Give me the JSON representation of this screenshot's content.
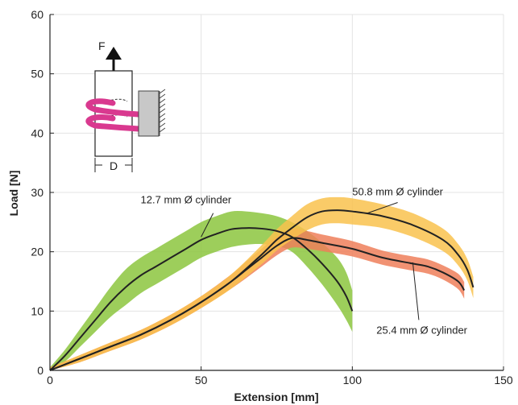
{
  "chart_data": {
    "type": "line",
    "title": "",
    "xlabel": "Extension [mm]",
    "ylabel": "Load [N]",
    "xlim": [
      0,
      150
    ],
    "ylim": [
      0,
      60
    ],
    "xticks": [
      0,
      50,
      100,
      150
    ],
    "yticks": [
      0,
      10,
      20,
      30,
      40,
      50,
      60
    ],
    "grid": true,
    "series": [
      {
        "name": "12.7 mm Ø cylinder",
        "color": "#222222",
        "band_color": "#8cc63e",
        "x": [
          0,
          5,
          10,
          15,
          20,
          25,
          30,
          35,
          40,
          45,
          50,
          55,
          60,
          65,
          70,
          75,
          80,
          85,
          90,
          95,
          98,
          100
        ],
        "y": [
          0,
          2.5,
          5.5,
          8.5,
          11.5,
          14,
          16,
          17.5,
          19,
          20.5,
          22,
          23,
          23.8,
          24,
          23.9,
          23.5,
          22.5,
          20.5,
          18,
          15,
          12.5,
          10
        ],
        "band": [
          0.5,
          1,
          1.5,
          2,
          2.5,
          3,
          3,
          3,
          3,
          3,
          3,
          3,
          3,
          2.8,
          2.6,
          2.5,
          2.5,
          3,
          3.5,
          4,
          4,
          3.5
        ]
      },
      {
        "name": "25.4 mm Ø cylinder",
        "color": "#222222",
        "band_color": "#ef7f5a",
        "x": [
          0,
          10,
          20,
          30,
          40,
          50,
          60,
          65,
          70,
          75,
          80,
          85,
          90,
          100,
          110,
          120,
          125,
          130,
          135,
          137
        ],
        "y": [
          0,
          2,
          4,
          6,
          8.5,
          11.5,
          15,
          17,
          19,
          21,
          22.3,
          22,
          21.5,
          20.5,
          19,
          18,
          17.5,
          16.5,
          15,
          13.5
        ],
        "band": [
          0.5,
          0.6,
          0.7,
          0.8,
          0.9,
          1,
          1.2,
          1.4,
          1.5,
          1.6,
          1.6,
          1.5,
          1.4,
          1.3,
          1.2,
          1.2,
          1.2,
          1.2,
          1.3,
          1.4
        ]
      },
      {
        "name": "50.8 mm Ø cylinder",
        "color": "#222222",
        "band_color": "#f9c24e",
        "x": [
          0,
          10,
          20,
          30,
          40,
          50,
          60,
          70,
          75,
          80,
          85,
          90,
          95,
          100,
          110,
          120,
          130,
          135,
          138,
          140
        ],
        "y": [
          0,
          2,
          4,
          6,
          8.5,
          11.5,
          15,
          19.5,
          22,
          24,
          25.8,
          26.8,
          27,
          26.8,
          26,
          24.5,
          22,
          19.5,
          17,
          14
        ],
        "band": [
          0.5,
          0.6,
          0.7,
          0.8,
          0.9,
          1,
          1.2,
          1.6,
          1.8,
          2,
          2.2,
          2.2,
          2.2,
          2.2,
          2,
          2,
          1.9,
          1.8,
          1.8,
          1.8
        ]
      }
    ],
    "annotations": [
      {
        "text": "12.7 mm Ø cylinder",
        "x": 45,
        "y": 28.2,
        "anchor_x": 50,
        "anchor_y": 22.5,
        "leader_from_x": 54,
        "leader_from_y": 26.5
      },
      {
        "text": "50.8 mm Ø cylinder",
        "x": 115,
        "y": 29.5,
        "anchor_x": 105,
        "anchor_y": 26.5,
        "leader_from_x": 115,
        "leader_from_y": 28.3
      },
      {
        "text": "25.4 mm Ø cylinder",
        "x": 123,
        "y": 6.2,
        "anchor_x": 120,
        "anchor_y": 18.2,
        "leader_from_x": 122,
        "leader_from_y": 8.5
      }
    ],
    "inset": {
      "force_label": "F",
      "diameter_label": "D"
    }
  }
}
